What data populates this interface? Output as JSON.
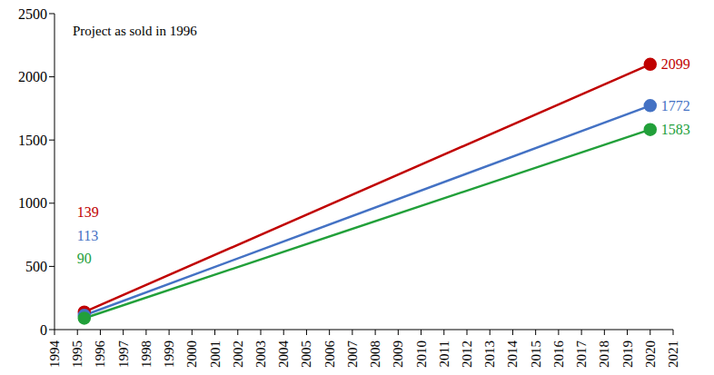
{
  "chart_data": {
    "type": "line",
    "annotation": "Project as sold in 1996",
    "x": [
      1995.3,
      2020
    ],
    "xlim": [
      1994,
      2021
    ],
    "xticks": [
      1994,
      1995,
      1996,
      1997,
      1998,
      1999,
      2000,
      2001,
      2002,
      2003,
      2004,
      2005,
      2006,
      2007,
      2008,
      2009,
      2010,
      2011,
      2012,
      2013,
      2014,
      2015,
      2016,
      2017,
      2018,
      2019,
      2020,
      2021
    ],
    "ylim": [
      0,
      2500
    ],
    "yticks": [
      0,
      500,
      1000,
      1500,
      2000,
      2500
    ],
    "grid": false,
    "data_labels": true,
    "marker": "circle",
    "series": [
      {
        "color": "#c00000",
        "values": [
          139,
          2099
        ]
      },
      {
        "color": "#4472c4",
        "values": [
          113,
          1772
        ]
      },
      {
        "color": "#22a03a",
        "values": [
          90,
          1583
        ]
      }
    ]
  }
}
